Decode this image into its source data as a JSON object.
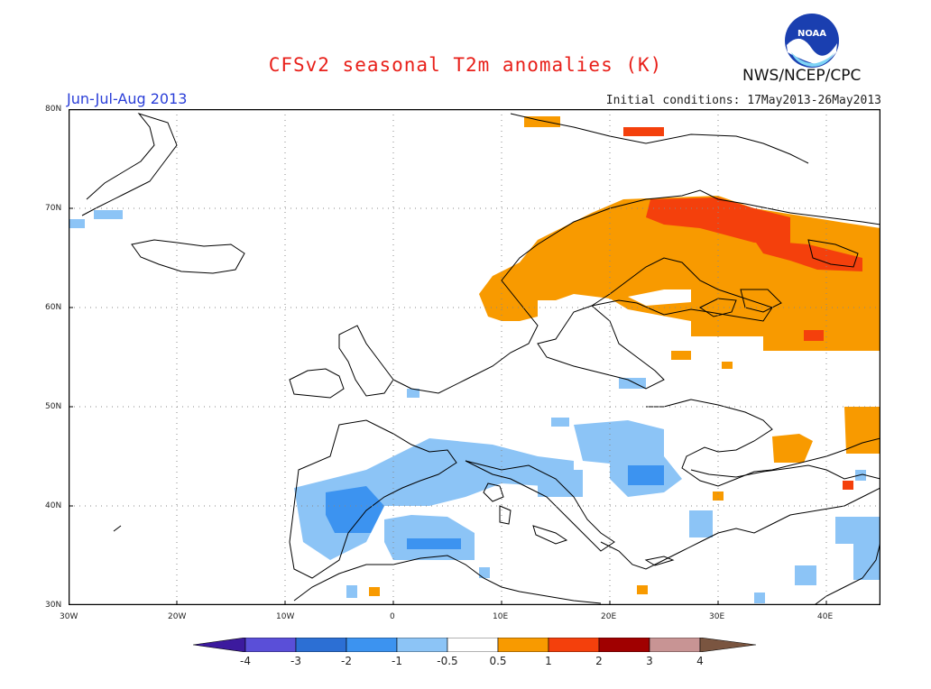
{
  "title": "CFSv2 seasonal T2m anomalies (K)",
  "season": "Jun-Jul-Aug 2013",
  "initial_conditions": "Initial conditions: 17May2013-26May2013",
  "agency": "NWS/NCEP/CPC",
  "logo_text": "NOAA",
  "lat_labels": [
    "80N",
    "70N",
    "60N",
    "50N",
    "40N",
    "30N"
  ],
  "lon_labels": [
    "30W",
    "20W",
    "10W",
    "0",
    "10E",
    "20E",
    "30E",
    "40E"
  ],
  "colorbar": {
    "labels": [
      "-4",
      "-3",
      "-2",
      "-1",
      "-0.5",
      "0.5",
      "1",
      "2",
      "3",
      "4"
    ],
    "colors": [
      "#3c1a9e",
      "#5a4fd8",
      "#2c6fd4",
      "#3c93f0",
      "#8cc4f6",
      "#ffffff",
      "#f89a00",
      "#f4400c",
      "#a00000",
      "#c89494",
      "#7a5540"
    ]
  },
  "colors": {
    "warm1": "#f89a00",
    "warm2": "#f4400c",
    "cool1": "#8cc4f6",
    "cool2": "#3c93f0",
    "title": "#e8201a",
    "season": "#2a3ed8"
  }
}
